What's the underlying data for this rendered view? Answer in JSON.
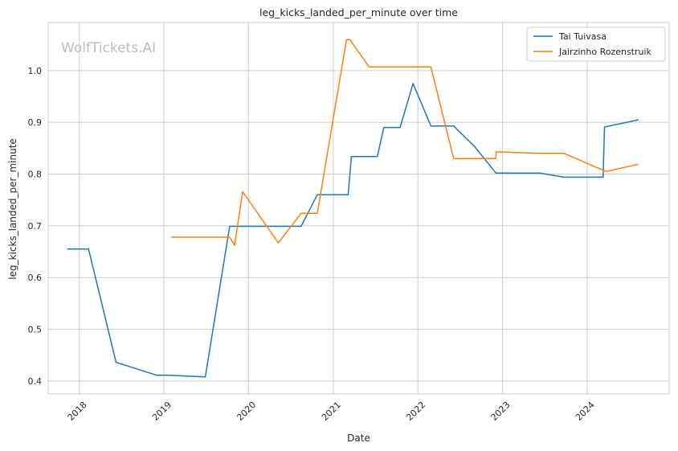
{
  "chart_data": {
    "type": "line",
    "title": "leg_kicks_landed_per_minute over time",
    "xlabel": "Date",
    "ylabel": "leg_kicks_landed_per_minute",
    "watermark": "WolfTickets.AI",
    "xlim": [
      "2017-08-20",
      "2024-12-20"
    ],
    "ylim": [
      0.375,
      1.093
    ],
    "x_ticks": [
      "2018-01-01",
      "2019-01-01",
      "2020-01-01",
      "2021-01-01",
      "2022-01-01",
      "2023-01-01",
      "2024-01-01"
    ],
    "x_tick_labels": [
      "2018",
      "2019",
      "2020",
      "2021",
      "2022",
      "2023",
      "2024"
    ],
    "y_ticks": [
      0.4,
      0.5,
      0.6,
      0.7,
      0.8,
      0.9,
      1.0
    ],
    "y_tick_labels": [
      "0.4",
      "0.5",
      "0.6",
      "0.7",
      "0.8",
      "0.9",
      "1.0"
    ],
    "grid": true,
    "legend_position": "top-right",
    "series": [
      {
        "name": "Tai Tuivasa",
        "color": "#1f77b4",
        "points": [
          [
            "2017-11-10",
            0.655
          ],
          [
            "2018-02-10",
            0.655
          ],
          [
            "2018-06-09",
            0.436
          ],
          [
            "2018-12-02",
            0.411
          ],
          [
            "2019-01-20",
            0.411
          ],
          [
            "2019-06-29",
            0.408
          ],
          [
            "2019-10-12",
            0.699
          ],
          [
            "2020-08-15",
            0.699
          ],
          [
            "2020-10-24",
            0.76
          ],
          [
            "2021-03-06",
            0.76
          ],
          [
            "2021-03-20",
            0.834
          ],
          [
            "2021-07-10",
            0.834
          ],
          [
            "2021-08-07",
            0.89
          ],
          [
            "2021-10-16",
            0.89
          ],
          [
            "2021-12-11",
            0.975
          ],
          [
            "2022-02-26",
            0.893
          ],
          [
            "2022-06-04",
            0.893
          ],
          [
            "2022-09-03",
            0.853
          ],
          [
            "2022-12-03",
            0.802
          ],
          [
            "2023-06-10",
            0.802
          ],
          [
            "2023-09-23",
            0.794
          ],
          [
            "2024-03-10",
            0.794
          ],
          [
            "2024-03-16",
            0.891
          ],
          [
            "2024-08-10",
            0.905
          ]
        ]
      },
      {
        "name": "Jairzinho Rozenstruik",
        "color": "#ff7f0e",
        "points": [
          [
            "2019-02-02",
            0.678
          ],
          [
            "2019-10-12",
            0.678
          ],
          [
            "2019-11-02",
            0.662
          ],
          [
            "2019-12-07",
            0.766
          ],
          [
            "2020-05-09",
            0.667
          ],
          [
            "2020-08-15",
            0.724
          ],
          [
            "2020-10-24",
            0.724
          ],
          [
            "2021-02-27",
            1.06
          ],
          [
            "2021-03-13",
            1.06
          ],
          [
            "2021-06-05",
            1.007
          ],
          [
            "2022-02-26",
            1.007
          ],
          [
            "2022-06-04",
            0.83
          ],
          [
            "2022-12-03",
            0.83
          ],
          [
            "2022-12-05",
            0.843
          ],
          [
            "2023-06-10",
            0.84
          ],
          [
            "2023-09-23",
            0.84
          ],
          [
            "2024-03-23",
            0.805
          ],
          [
            "2024-08-10",
            0.819
          ]
        ]
      }
    ]
  }
}
